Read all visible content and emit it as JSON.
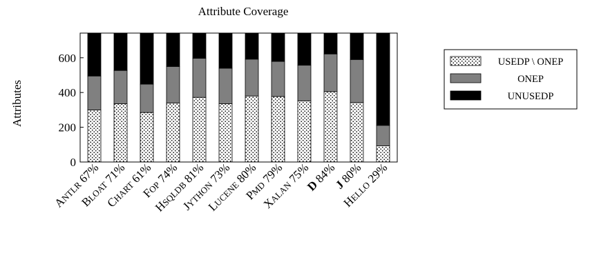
{
  "chart_data": {
    "type": "bar",
    "stacked": true,
    "title": "Attribute Coverage",
    "ylabel": "Attributes",
    "xlabel": "",
    "ylim": [
      0,
      742
    ],
    "yticks": [
      0,
      200,
      400,
      600
    ],
    "grid": false,
    "legend_position": "right",
    "categories": [
      {
        "label": "ANTLR",
        "pct": "67%",
        "bold": false
      },
      {
        "label": "BLOAT",
        "pct": "71%",
        "bold": false
      },
      {
        "label": "CHART",
        "pct": "61%",
        "bold": false
      },
      {
        "label": "FOP",
        "pct": "74%",
        "bold": false
      },
      {
        "label": "HSQLDB",
        "pct": "81%",
        "bold": false
      },
      {
        "label": "JYTHON",
        "pct": "73%",
        "bold": false
      },
      {
        "label": "LUCENE",
        "pct": "80%",
        "bold": false
      },
      {
        "label": "PMD",
        "pct": "79%",
        "bold": false
      },
      {
        "label": "XALAN",
        "pct": "75%",
        "bold": false
      },
      {
        "label": "D",
        "pct": "84%",
        "bold": true
      },
      {
        "label": "J",
        "pct": "80%",
        "bold": true
      },
      {
        "label": "HELLO",
        "pct": "29%",
        "bold": false
      }
    ],
    "series": [
      {
        "name": "USEDP \\ ONEP",
        "pattern": "dots",
        "color": "#ffffff",
        "values": [
          300,
          335,
          285,
          340,
          372,
          335,
          380,
          377,
          352,
          405,
          342,
          93
        ]
      },
      {
        "name": "ONEP",
        "pattern": "solid",
        "color": "#808080",
        "values": [
          195,
          192,
          163,
          210,
          225,
          205,
          212,
          202,
          205,
          217,
          248,
          118
        ]
      },
      {
        "name": "UNUSEDP",
        "pattern": "solid",
        "color": "#000000",
        "values": [
          247,
          215,
          294,
          192,
          145,
          202,
          150,
          163,
          185,
          120,
          152,
          531
        ]
      }
    ]
  }
}
